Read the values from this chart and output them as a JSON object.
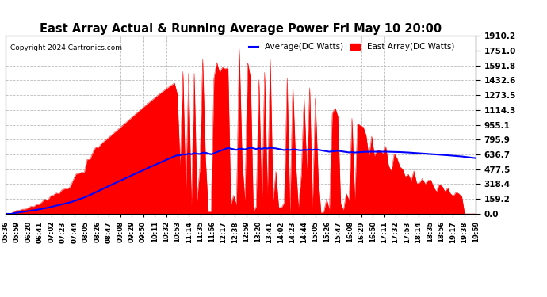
{
  "title": "East Array Actual & Running Average Power Fri May 10 20:00",
  "copyright": "Copyright 2024 Cartronics.com",
  "legend_avg": "Average(DC Watts)",
  "legend_east": "East Array(DC Watts)",
  "ylabel_values": [
    0.0,
    159.2,
    318.4,
    477.5,
    636.7,
    795.9,
    955.1,
    1114.3,
    1273.5,
    1432.6,
    1591.8,
    1751.0,
    1910.2
  ],
  "ymax": 1910.2,
  "ymin": 0.0,
  "bg_color": "#ffffff",
  "grid_color": "#bbbbbb",
  "fill_color": "#ff0000",
  "avg_line_color": "#0000ff",
  "title_color": "#000000",
  "copyright_color": "#000000",
  "legend_avg_color": "#0000ff",
  "legend_east_color": "#ff0000",
  "x_tick_labels": [
    "05:36",
    "05:59",
    "06:20",
    "06:41",
    "07:02",
    "07:23",
    "07:44",
    "08:05",
    "08:26",
    "08:47",
    "09:08",
    "09:29",
    "09:50",
    "10:11",
    "10:32",
    "10:53",
    "11:14",
    "11:35",
    "11:56",
    "12:17",
    "12:38",
    "12:59",
    "13:20",
    "13:41",
    "14:02",
    "14:23",
    "14:44",
    "15:05",
    "15:26",
    "15:47",
    "16:08",
    "16:29",
    "16:50",
    "17:11",
    "17:32",
    "17:53",
    "18:14",
    "18:35",
    "18:56",
    "19:17",
    "19:38",
    "19:59"
  ],
  "n_points": 168,
  "figsize": [
    6.9,
    3.75
  ],
  "dpi": 100
}
